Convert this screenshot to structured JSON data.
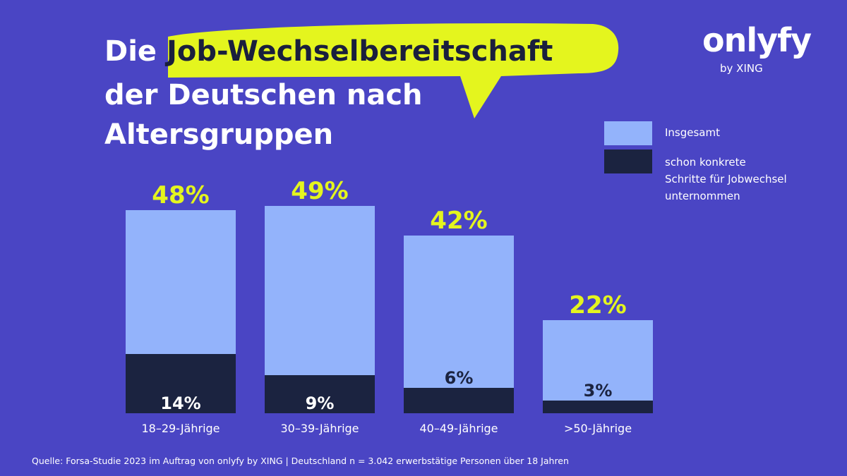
{
  "header": {
    "title_pre": "Die ",
    "title_highlight": "Job-Wechselbereitschaft",
    "title_line2": "der Deutschen nach",
    "title_line3": "Altersgruppen"
  },
  "brand": {
    "name": "onlyfy",
    "sub": "by XING"
  },
  "legend": {
    "total_label": "Insgesamt",
    "concrete_label_lines": [
      "schon konkrete",
      "Schritte für Jobwechsel",
      "unternommen"
    ]
  },
  "source": "Quelle: Forsa-Studie 2023 im Auftrag von onlyfy by XING | Deutschland n = 3.042 erwerbstätige Personen über 18 Jahren",
  "colors": {
    "background": "#4a45c4",
    "total": "#93b3fb",
    "concrete": "#1b2340",
    "accent": "#e4f51e"
  },
  "chart_data": {
    "type": "bar",
    "title": "Die Job-Wechselbereitschaft der Deutschen nach Altersgruppen",
    "categories": [
      "18–29-Jährige",
      "30–39-Jährige",
      "40–49-Jährige",
      ">50-Jährige"
    ],
    "series": [
      {
        "name": "Insgesamt",
        "values": [
          48,
          49,
          42,
          22
        ],
        "labels": [
          "48%",
          "49%",
          "42%",
          "22%"
        ]
      },
      {
        "name": "schon konkrete Schritte für Jobwechsel unternommen",
        "values": [
          14,
          9,
          6,
          3
        ],
        "labels": [
          "14%",
          "9%",
          "6%",
          "3%"
        ]
      }
    ],
    "overlay": true,
    "ylim": [
      0,
      49
    ],
    "xlabel": "",
    "ylabel": "",
    "grid": false,
    "legend_position": "top-right"
  }
}
